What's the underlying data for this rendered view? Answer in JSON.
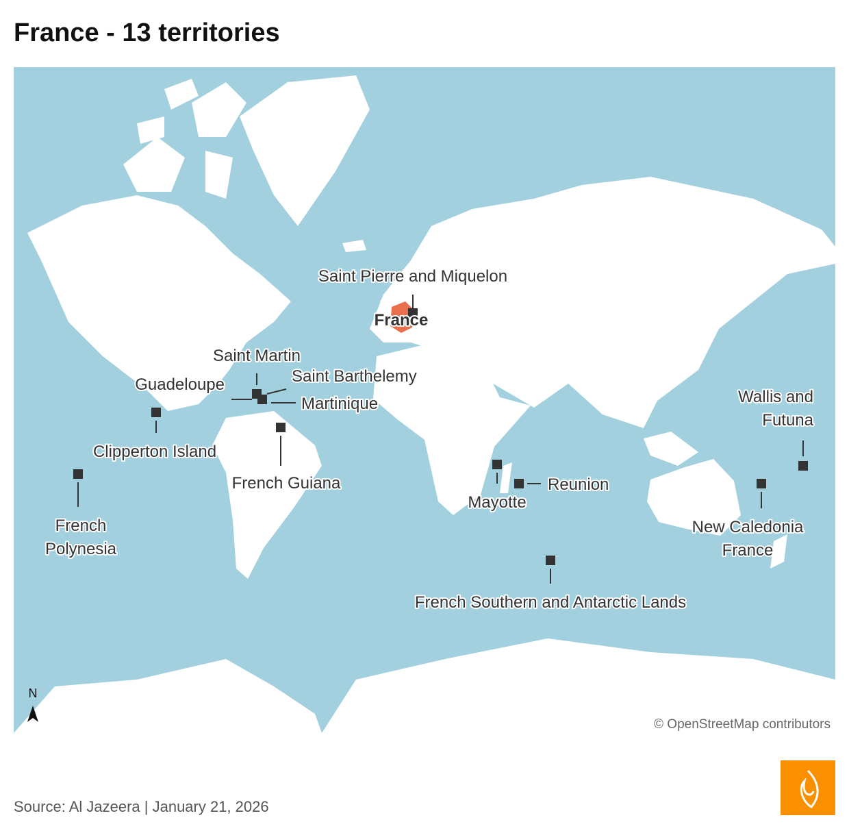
{
  "title": "France - 13 territories",
  "map": {
    "labels": {
      "saint_pierre": "Saint Pierre and Miquelon",
      "france": "France",
      "saint_martin": "Saint Martin",
      "saint_barthelemy": "Saint Barthelemy",
      "guadeloupe": "Guadeloupe",
      "martinique": "Martinique",
      "clipperton": "Clipperton Island",
      "french_guiana": "French Guiana",
      "french_polynesia": [
        "French",
        "Polynesia"
      ],
      "mayotte": "Mayotte",
      "reunion": "Reunion",
      "wallis_futuna": [
        "Wallis and",
        "Futuna"
      ],
      "new_caledonia": [
        "New Caledonia",
        "France"
      ],
      "southern_lands": "French Southern and Antarctic Lands"
    },
    "north": "N",
    "attribution": "© OpenStreetMap contributors"
  },
  "footer": {
    "source": "Source: Al Jazeera | January 21, 2026"
  }
}
